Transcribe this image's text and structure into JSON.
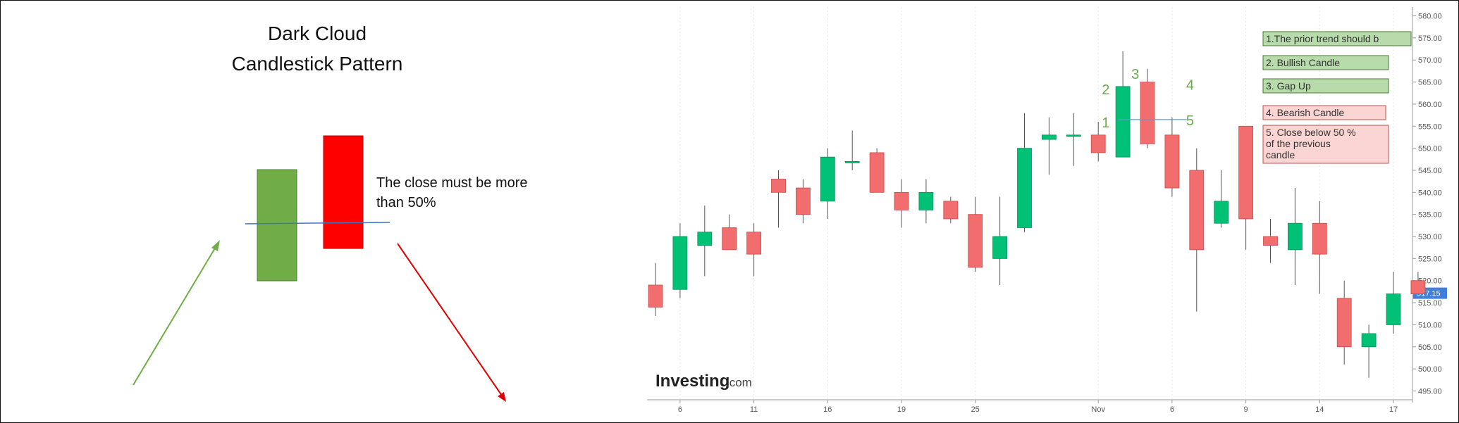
{
  "left_diagram": {
    "title_line1": "Dark Cloud",
    "title_line2": "Candlestick Pattern",
    "note_line1": "The close must be more",
    "note_line2": "than 50%",
    "colors": {
      "bull": "#70ad47",
      "bear": "#ff0000",
      "midline": "#4472c4",
      "up_arrow": "#70ad47",
      "down_arrow": "#e00000"
    }
  },
  "chart_data": {
    "type": "candlestick",
    "title": "",
    "xlabel": "",
    "ylabel": "",
    "ylim": [
      493,
      582
    ],
    "y_ticks": [
      "580.00",
      "575.00",
      "570.00",
      "565.00",
      "560.00",
      "555.00",
      "550.00",
      "545.00",
      "540.00",
      "535.00",
      "530.00",
      "525.00",
      "520.00",
      "515.00",
      "510.00",
      "505.00",
      "500.00",
      "495.00"
    ],
    "x_ticks": [
      {
        "label": "6",
        "index": 1
      },
      {
        "label": "11",
        "index": 4
      },
      {
        "label": "16",
        "index": 7
      },
      {
        "label": "19",
        "index": 10
      },
      {
        "label": "25",
        "index": 13
      },
      {
        "label": "Nov",
        "index": 18
      },
      {
        "label": "6",
        "index": 21
      },
      {
        "label": "9",
        "index": 24
      },
      {
        "label": "14",
        "index": 27
      },
      {
        "label": "17",
        "index": 30
      }
    ],
    "up_color": "#00c176",
    "down_color": "#f26d6d",
    "candles": [
      {
        "o": 519,
        "h": 524,
        "l": 512,
        "c": 514
      },
      {
        "o": 518,
        "h": 533,
        "l": 516,
        "c": 530
      },
      {
        "o": 528,
        "h": 537,
        "l": 521,
        "c": 531
      },
      {
        "o": 532,
        "h": 535,
        "l": 527,
        "c": 527
      },
      {
        "o": 531,
        "h": 533,
        "l": 521,
        "c": 526
      },
      {
        "o": 543,
        "h": 545,
        "l": 532,
        "c": 540
      },
      {
        "o": 541,
        "h": 543,
        "l": 533,
        "c": 535
      },
      {
        "o": 538,
        "h": 550,
        "l": 534,
        "c": 548
      },
      {
        "o": 547,
        "h": 554,
        "l": 545,
        "c": 547
      },
      {
        "o": 549,
        "h": 550,
        "l": 540,
        "c": 540
      },
      {
        "o": 540,
        "h": 543,
        "l": 532,
        "c": 536
      },
      {
        "o": 536,
        "h": 543,
        "l": 533,
        "c": 540
      },
      {
        "o": 538,
        "h": 539,
        "l": 533,
        "c": 534
      },
      {
        "o": 535,
        "h": 539,
        "l": 522,
        "c": 523
      },
      {
        "o": 525,
        "h": 539,
        "l": 519,
        "c": 530
      },
      {
        "o": 532,
        "h": 558,
        "l": 531,
        "c": 550
      },
      {
        "o": 552,
        "h": 557,
        "l": 544,
        "c": 553
      },
      {
        "o": 553,
        "h": 558,
        "l": 546,
        "c": 553
      },
      {
        "o": 553,
        "h": 556,
        "l": 547,
        "c": 549
      },
      {
        "o": 548,
        "h": 572,
        "l": 548,
        "c": 564
      },
      {
        "o": 565,
        "h": 568,
        "l": 550,
        "c": 551
      },
      {
        "o": 553,
        "h": 557,
        "l": 539,
        "c": 541
      },
      {
        "o": 545,
        "h": 550,
        "l": 513,
        "c": 527
      },
      {
        "o": 533,
        "h": 545,
        "l": 532,
        "c": 538
      },
      {
        "o": 555,
        "h": 555,
        "l": 527,
        "c": 534
      },
      {
        "o": 530,
        "h": 534,
        "l": 524,
        "c": 528
      },
      {
        "o": 527,
        "h": 541,
        "l": 519,
        "c": 533
      },
      {
        "o": 533,
        "h": 538,
        "l": 517,
        "c": 526
      },
      {
        "o": 516,
        "h": 520,
        "l": 501,
        "c": 505
      },
      {
        "o": 505,
        "h": 510,
        "l": 498,
        "c": 508
      },
      {
        "o": 510,
        "h": 522,
        "l": 508,
        "c": 517
      },
      {
        "o": 520,
        "h": 522,
        "l": 517,
        "c": 517
      }
    ],
    "last_price_label": "517.15",
    "last_price_color": "#3d7ede",
    "pattern_labels": [
      "1",
      "2",
      "3",
      "4",
      "5"
    ],
    "pattern_label_color": "#6aa84f",
    "legend": [
      {
        "text": "1.The prior trend should b",
        "bg": "#b7dbab",
        "border": "#4a7a34"
      },
      {
        "text": "2. Bullish Candle",
        "bg": "#b7dbab",
        "border": "#4a7a34"
      },
      {
        "text": "3. Gap Up",
        "bg": "#b7dbab",
        "border": "#4a7a34"
      },
      {
        "text": "4. Bearish Candle",
        "bg": "#fbd4d4",
        "border": "#c0504d"
      },
      {
        "text": "5. Close below 50 %",
        "text2": "of the previous",
        "text3": "candle",
        "bg": "#fbd4d4",
        "border": "#c0504d"
      }
    ],
    "watermark": "Investing",
    "watermark_suffix": ".com"
  }
}
